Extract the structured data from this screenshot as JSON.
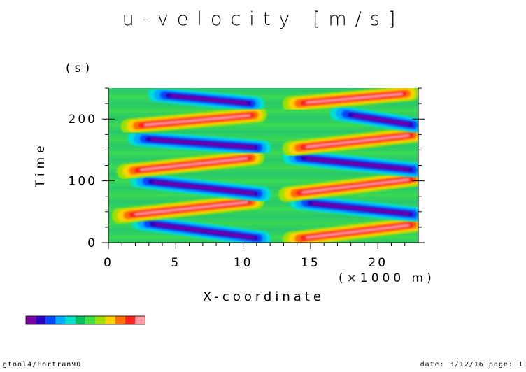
{
  "title": "u-velocity [m/s]",
  "footer": {
    "left": "gtool4/Fortran90",
    "right": "date: 3/12/16 page: 1"
  },
  "chart_data": {
    "type": "heatmap",
    "title": "u-velocity [m/s]",
    "xlabel": "X-coordinate",
    "xunit": "(×1000 m)",
    "ylabel": "Time",
    "yunit": "(s)",
    "xlim": [
      0,
      23
    ],
    "ylim": [
      0,
      250
    ],
    "xticks": [
      0,
      5,
      10,
      15,
      20
    ],
    "yticks": [
      0,
      100,
      200
    ],
    "grid": false,
    "colorbar": {
      "placement": "bottom-left",
      "colors": [
        "#7a00a0",
        "#2a00c0",
        "#0048ff",
        "#00aaff",
        "#00e0d0",
        "#00c060",
        "#40e040",
        "#a0e000",
        "#ffd000",
        "#ff7000",
        "#ff2020",
        "#ff9aa0"
      ]
    },
    "background_color": "#30d060",
    "bands": [
      {
        "sign": "neg",
        "x0": 2.3,
        "y0": 33,
        "x1": 11.5,
        "y1": 6
      },
      {
        "sign": "pos",
        "x0": 0.8,
        "y0": 43,
        "x1": 11.0,
        "y1": 67
      },
      {
        "sign": "neg",
        "x0": 2.2,
        "y0": 101,
        "x1": 11.5,
        "y1": 78
      },
      {
        "sign": "pos",
        "x0": 1.2,
        "y0": 115,
        "x1": 11.0,
        "y1": 138
      },
      {
        "sign": "neg",
        "x0": 2.0,
        "y0": 169,
        "x1": 11.5,
        "y1": 153
      },
      {
        "sign": "pos",
        "x0": 1.5,
        "y0": 188,
        "x1": 11.2,
        "y1": 207
      },
      {
        "sign": "neg",
        "x0": 3.5,
        "y0": 240,
        "x1": 11.0,
        "y1": 224
      },
      {
        "sign": "pos",
        "x0": 13.5,
        "y0": 5,
        "x1": 23.0,
        "y1": 30
      },
      {
        "sign": "neg",
        "x0": 14.0,
        "y0": 66,
        "x1": 23.0,
        "y1": 45
      },
      {
        "sign": "pos",
        "x0": 13.2,
        "y0": 78,
        "x1": 23.0,
        "y1": 104
      },
      {
        "sign": "neg",
        "x0": 13.5,
        "y0": 139,
        "x1": 23.0,
        "y1": 117
      },
      {
        "sign": "pos",
        "x0": 13.5,
        "y0": 152,
        "x1": 23.0,
        "y1": 175
      },
      {
        "sign": "neg",
        "x0": 17.0,
        "y0": 210,
        "x1": 23.0,
        "y1": 189
      },
      {
        "sign": "pos",
        "x0": 13.5,
        "y0": 224,
        "x1": 22.5,
        "y1": 242
      }
    ]
  }
}
